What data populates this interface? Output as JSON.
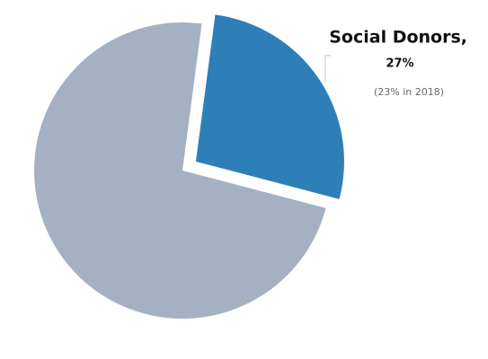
{
  "chart_data": {
    "type": "pie",
    "categories": [
      "Social Donors,",
      null
    ],
    "values": [
      27,
      73
    ],
    "value_labels": [
      "27%",
      null
    ],
    "colors": [
      "#2e7fb8",
      "#a5b1c2"
    ],
    "annotation": "(23% in 2018)"
  }
}
